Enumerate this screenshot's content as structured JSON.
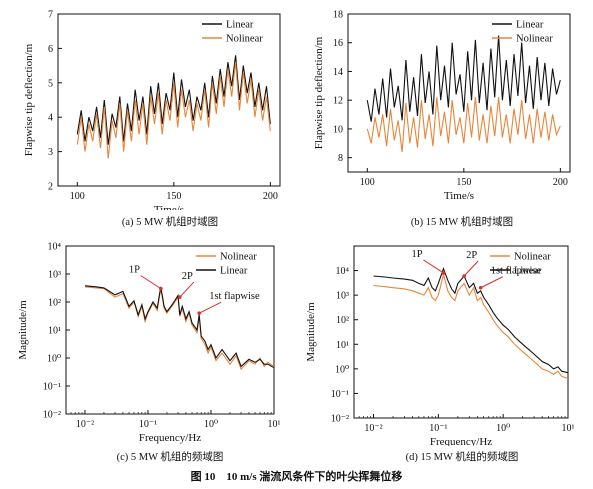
{
  "figure_caption": "图 10　10 m/s 湍流风条件下的叶尖挥舞位移",
  "colors": {
    "linear": "#111111",
    "nolinear": "#e9853a",
    "annotation": "#d9302a"
  },
  "chart_data": [
    {
      "id": "a",
      "type": "line",
      "caption": "(a) 5 MW 机组时域图",
      "xlabel": "Time/s",
      "ylabel": "Flapwise tip deflection/m",
      "xlim": [
        90,
        205
      ],
      "ylim": [
        2,
        7
      ],
      "xticks": [
        100,
        150,
        200
      ],
      "yticks": [
        2,
        3,
        4,
        5,
        6,
        7
      ],
      "xscale": "linear",
      "yscale": "linear",
      "legend": "top-right",
      "series": [
        {
          "name": "Linear",
          "color": "#111111",
          "x": [
            100,
            102,
            104,
            106,
            108,
            110,
            112,
            114,
            116,
            118,
            120,
            122,
            124,
            126,
            128,
            130,
            132,
            134,
            136,
            138,
            140,
            142,
            144,
            146,
            148,
            150,
            152,
            154,
            156,
            158,
            160,
            162,
            164,
            166,
            168,
            170,
            172,
            174,
            176,
            178,
            180,
            182,
            184,
            186,
            188,
            190,
            192,
            194,
            196,
            198,
            200
          ],
          "y": [
            3.5,
            4.2,
            3.3,
            4.0,
            3.6,
            4.3,
            3.4,
            4.5,
            3.2,
            4.1,
            3.7,
            4.6,
            3.3,
            4.4,
            3.6,
            4.8,
            3.9,
            4.6,
            3.5,
            4.9,
            4.1,
            5.0,
            3.8,
            4.7,
            4.2,
            5.3,
            4.0,
            5.1,
            4.3,
            4.8,
            3.9,
            4.6,
            4.2,
            5.0,
            4.0,
            5.2,
            4.4,
            5.4,
            4.6,
            5.6,
            4.9,
            5.8,
            4.5,
            5.5,
            4.7,
            5.3,
            4.3,
            5.0,
            4.2,
            4.9,
            3.8
          ]
        },
        {
          "name": "Nolinear",
          "color": "#e9853a",
          "x": [
            100,
            102,
            104,
            106,
            108,
            110,
            112,
            114,
            116,
            118,
            120,
            122,
            124,
            126,
            128,
            130,
            132,
            134,
            136,
            138,
            140,
            142,
            144,
            146,
            148,
            150,
            152,
            154,
            156,
            158,
            160,
            162,
            164,
            166,
            168,
            170,
            172,
            174,
            176,
            178,
            180,
            182,
            184,
            186,
            188,
            190,
            192,
            194,
            196,
            198,
            200
          ],
          "y": [
            3.2,
            4.0,
            3.0,
            3.8,
            3.3,
            4.1,
            3.1,
            4.3,
            2.8,
            3.9,
            3.4,
            4.4,
            3.0,
            4.2,
            3.3,
            4.5,
            3.5,
            4.4,
            3.2,
            4.6,
            3.8,
            4.7,
            3.5,
            4.5,
            3.9,
            5.0,
            3.7,
            4.8,
            4.0,
            4.5,
            3.6,
            4.4,
            3.9,
            4.8,
            3.7,
            5.0,
            4.1,
            5.2,
            4.3,
            5.4,
            4.6,
            5.6,
            4.2,
            5.3,
            4.4,
            5.1,
            4.0,
            4.8,
            3.9,
            4.6,
            3.6
          ]
        }
      ]
    },
    {
      "id": "b",
      "type": "line",
      "caption": "(b) 15 MW 机组时域图",
      "xlabel": "Time/s",
      "ylabel": "Flapwise tip deflection/m",
      "xlim": [
        90,
        205
      ],
      "ylim": [
        7,
        18
      ],
      "xticks": [
        100,
        150,
        200
      ],
      "yticks": [
        8,
        10,
        12,
        14,
        16,
        18
      ],
      "xscale": "linear",
      "yscale": "linear",
      "legend": "top-right",
      "series": [
        {
          "name": "Linear",
          "color": "#111111",
          "x": [
            100,
            102,
            104,
            106,
            108,
            110,
            112,
            114,
            116,
            118,
            120,
            122,
            124,
            126,
            128,
            130,
            132,
            134,
            136,
            138,
            140,
            142,
            144,
            146,
            148,
            150,
            152,
            154,
            156,
            158,
            160,
            162,
            164,
            166,
            168,
            170,
            172,
            174,
            176,
            178,
            180,
            182,
            184,
            186,
            188,
            190,
            192,
            194,
            196,
            198,
            200
          ],
          "y": [
            12.0,
            10.5,
            12.8,
            11.0,
            13.5,
            10.8,
            14.2,
            11.5,
            13.0,
            10.6,
            14.8,
            11.2,
            13.6,
            10.9,
            15.2,
            11.8,
            14.0,
            11.0,
            15.8,
            12.0,
            14.4,
            11.5,
            16.0,
            12.4,
            13.8,
            11.2,
            15.4,
            12.0,
            16.2,
            11.8,
            14.6,
            11.3,
            15.6,
            12.2,
            16.5,
            12.0,
            14.8,
            11.6,
            15.2,
            12.3,
            16.0,
            11.8,
            14.4,
            11.4,
            15.0,
            12.0,
            14.6,
            11.6,
            14.2,
            12.4,
            13.4
          ]
        },
        {
          "name": "Nolinear",
          "color": "#e9853a",
          "x": [
            100,
            102,
            104,
            106,
            108,
            110,
            112,
            114,
            116,
            118,
            120,
            122,
            124,
            126,
            128,
            130,
            132,
            134,
            136,
            138,
            140,
            142,
            144,
            146,
            148,
            150,
            152,
            154,
            156,
            158,
            160,
            162,
            164,
            166,
            168,
            170,
            172,
            174,
            176,
            178,
            180,
            182,
            184,
            186,
            188,
            190,
            192,
            194,
            196,
            198,
            200
          ],
          "y": [
            10.0,
            9.0,
            10.8,
            9.4,
            11.0,
            8.8,
            11.4,
            9.2,
            10.6,
            8.4,
            11.8,
            9.0,
            10.8,
            8.7,
            12.0,
            9.3,
            11.0,
            8.8,
            12.2,
            9.5,
            11.2,
            9.0,
            12.0,
            9.6,
            10.8,
            9.0,
            11.8,
            9.4,
            12.2,
            9.2,
            11.0,
            9.0,
            11.6,
            9.5,
            12.2,
            9.4,
            11.0,
            9.0,
            11.4,
            9.6,
            12.0,
            9.3,
            11.0,
            9.0,
            11.4,
            9.4,
            11.2,
            9.2,
            11.0,
            9.6,
            10.2
          ]
        }
      ]
    },
    {
      "id": "c",
      "type": "line",
      "caption": "(c) 5 MW 机组的频域图",
      "xlabel": "Frequency/Hz",
      "ylabel": "Magnitude/m",
      "xscale": "log",
      "yscale": "log",
      "xlim": [
        0.005,
        10
      ],
      "ylim": [
        0.01,
        10000
      ],
      "xticks": [
        0.01,
        0.1,
        1,
        10
      ],
      "xticklabels": [
        "10⁻²",
        "10⁻¹",
        "10⁰",
        "10¹"
      ],
      "yticks": [
        0.01,
        0.1,
        1,
        10,
        100,
        1000,
        10000
      ],
      "yticklabels": [
        "10⁻²",
        "10⁻¹",
        "10⁰",
        "10¹",
        "10²",
        "10³",
        "10⁴"
      ],
      "legend": "top-right",
      "annotations": [
        {
          "text": "1P",
          "x": 0.16,
          "y": 300
        },
        {
          "text": "2P",
          "x": 0.32,
          "y": 150
        },
        {
          "text": "1st flapwise",
          "x": 0.65,
          "y": 40
        }
      ],
      "series": [
        {
          "name": "Nolinear",
          "color": "#e9853a",
          "x": [
            0.01,
            0.015,
            0.02,
            0.03,
            0.04,
            0.05,
            0.06,
            0.07,
            0.08,
            0.09,
            0.1,
            0.12,
            0.14,
            0.16,
            0.18,
            0.2,
            0.25,
            0.3,
            0.32,
            0.35,
            0.4,
            0.45,
            0.5,
            0.6,
            0.65,
            0.7,
            0.8,
            0.9,
            1.0,
            1.2,
            1.5,
            2.0,
            2.5,
            3.0,
            4.0,
            5.0,
            6.0,
            7.0,
            8.0,
            10.0
          ],
          "y": [
            350,
            320,
            300,
            150,
            200,
            60,
            100,
            30,
            70,
            20,
            40,
            90,
            50,
            300,
            60,
            40,
            80,
            150,
            30,
            60,
            20,
            40,
            15,
            8,
            30,
            5,
            3,
            1.5,
            2.5,
            0.8,
            1.5,
            0.6,
            1.2,
            0.4,
            0.8,
            0.6,
            1.0,
            0.5,
            0.7,
            0.5
          ]
        },
        {
          "name": "Linear",
          "color": "#111111",
          "x": [
            0.01,
            0.015,
            0.02,
            0.03,
            0.04,
            0.05,
            0.06,
            0.07,
            0.08,
            0.09,
            0.1,
            0.12,
            0.14,
            0.16,
            0.18,
            0.2,
            0.25,
            0.3,
            0.32,
            0.35,
            0.4,
            0.45,
            0.5,
            0.6,
            0.65,
            0.7,
            0.8,
            0.9,
            1.0,
            1.2,
            1.5,
            2.0,
            2.5,
            3.0,
            4.0,
            5.0,
            6.0,
            7.0,
            8.0,
            10.0
          ],
          "y": [
            380,
            350,
            320,
            180,
            240,
            70,
            110,
            35,
            80,
            25,
            45,
            100,
            60,
            350,
            70,
            45,
            90,
            170,
            35,
            70,
            25,
            45,
            18,
            10,
            35,
            6,
            4,
            2,
            3,
            1,
            2,
            0.8,
            1.5,
            0.5,
            0.9,
            0.7,
            0.9,
            0.6,
            0.6,
            0.45
          ]
        }
      ]
    },
    {
      "id": "d",
      "type": "line",
      "caption": "(d) 15 MW 机组的频域图",
      "xlabel": "Frequency/Hz",
      "ylabel": "Magnitude/m",
      "xscale": "log",
      "yscale": "log",
      "xlim": [
        0.005,
        10
      ],
      "ylim": [
        0.01,
        100000
      ],
      "xticks": [
        0.01,
        0.1,
        1,
        10
      ],
      "xticklabels": [
        "10⁻²",
        "10⁻¹",
        "10⁰",
        "10¹"
      ],
      "yticks": [
        0.01,
        0.1,
        1,
        10,
        100,
        1000,
        10000
      ],
      "yticklabels": [
        "10⁻²",
        "10⁻¹",
        "10⁰",
        "10¹",
        "10²",
        "10³",
        "10⁴"
      ],
      "legend": "top-right",
      "annotations": [
        {
          "text": "1P",
          "x": 0.12,
          "y": 8000
        },
        {
          "text": "2P",
          "x": 0.25,
          "y": 6000
        },
        {
          "text": "1st flapwise",
          "x": 0.45,
          "y": 2000
        }
      ],
      "series": [
        {
          "name": "Nolinear",
          "color": "#e9853a",
          "x": [
            0.01,
            0.015,
            0.02,
            0.03,
            0.04,
            0.05,
            0.06,
            0.07,
            0.08,
            0.09,
            0.1,
            0.12,
            0.14,
            0.16,
            0.18,
            0.2,
            0.25,
            0.3,
            0.35,
            0.4,
            0.45,
            0.5,
            0.6,
            0.7,
            0.8,
            1.0,
            1.2,
            1.5,
            2.0,
            2.5,
            3.0,
            4.0,
            5.0,
            6.0,
            7.0,
            8.0,
            10.0
          ],
          "y": [
            2500,
            2200,
            2000,
            1800,
            1500,
            1200,
            1000,
            2000,
            800,
            600,
            1000,
            7000,
            1500,
            800,
            600,
            1500,
            3000,
            1000,
            2000,
            600,
            800,
            400,
            200,
            100,
            60,
            30,
            20,
            10,
            5,
            3,
            2,
            1,
            0.8,
            0.6,
            0.8,
            0.5,
            0.4
          ]
        },
        {
          "name": "Linear",
          "color": "#111111",
          "x": [
            0.01,
            0.015,
            0.02,
            0.03,
            0.04,
            0.05,
            0.06,
            0.07,
            0.08,
            0.09,
            0.1,
            0.12,
            0.14,
            0.16,
            0.18,
            0.2,
            0.25,
            0.3,
            0.35,
            0.4,
            0.45,
            0.5,
            0.6,
            0.7,
            0.8,
            1.0,
            1.2,
            1.5,
            2.0,
            2.5,
            3.0,
            4.0,
            5.0,
            6.0,
            7.0,
            8.0,
            10.0
          ],
          "y": [
            6000,
            5500,
            5000,
            4500,
            4000,
            3000,
            2500,
            5000,
            2000,
            1500,
            3000,
            12000,
            4000,
            1800,
            1200,
            3000,
            6000,
            2000,
            3000,
            1200,
            1500,
            800,
            400,
            200,
            120,
            60,
            40,
            20,
            10,
            6,
            4,
            2,
            1.5,
            1.0,
            1.2,
            0.8,
            0.7
          ]
        }
      ]
    }
  ]
}
